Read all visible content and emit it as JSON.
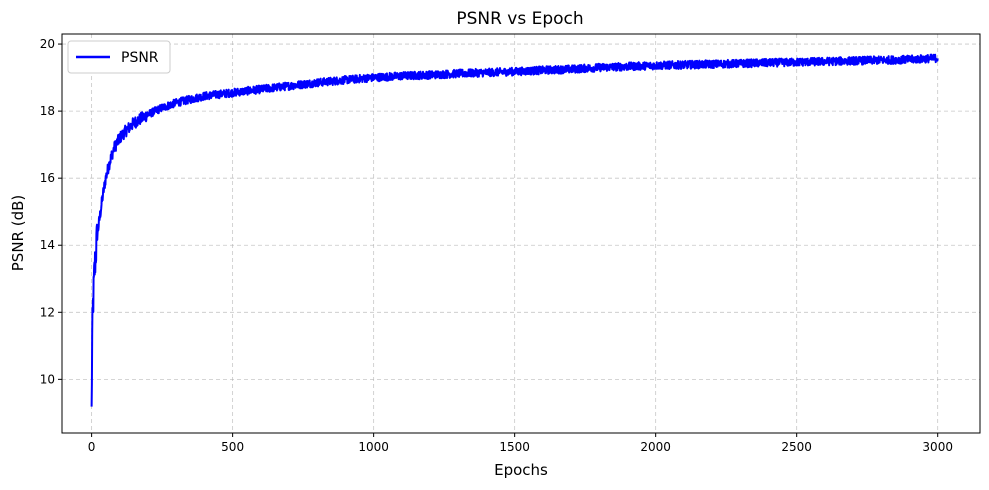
{
  "chart_data": {
    "type": "line",
    "title": "PSNR vs Epoch",
    "xlabel": "Epochs",
    "ylabel": "PSNR (dB)",
    "xlim": [
      -105,
      3150
    ],
    "ylim": [
      8.4,
      20.3
    ],
    "xticks": [
      0,
      500,
      1000,
      1500,
      2000,
      2500,
      3000
    ],
    "yticks": [
      10,
      12,
      14,
      16,
      18,
      20
    ],
    "grid": true,
    "legend_position": "top-left",
    "colors": {
      "line": "#0000ff",
      "grid": "#b0b0b0",
      "legend_border": "#cccccc"
    },
    "series": [
      {
        "name": "PSNR",
        "x": [
          0,
          2,
          5,
          10,
          15,
          20,
          30,
          40,
          50,
          60,
          70,
          80,
          100,
          120,
          150,
          200,
          250,
          300,
          350,
          400,
          450,
          500,
          600,
          700,
          800,
          900,
          1000,
          1100,
          1200,
          1300,
          1400,
          1500,
          1600,
          1700,
          1800,
          1900,
          2000,
          2100,
          2200,
          2300,
          2400,
          2500,
          2600,
          2700,
          2800,
          2900,
          3000
        ],
        "values": [
          9.0,
          11.2,
          12.2,
          13.2,
          13.8,
          14.3,
          14.9,
          15.5,
          16.0,
          16.35,
          16.65,
          16.9,
          17.2,
          17.4,
          17.65,
          17.9,
          18.1,
          18.25,
          18.35,
          18.45,
          18.5,
          18.55,
          18.65,
          18.75,
          18.85,
          18.93,
          19.0,
          19.05,
          19.08,
          19.12,
          19.15,
          19.18,
          19.22,
          19.25,
          19.3,
          19.33,
          19.36,
          19.38,
          19.4,
          19.42,
          19.44,
          19.46,
          19.48,
          19.5,
          19.52,
          19.54,
          19.58
        ]
      }
    ]
  }
}
